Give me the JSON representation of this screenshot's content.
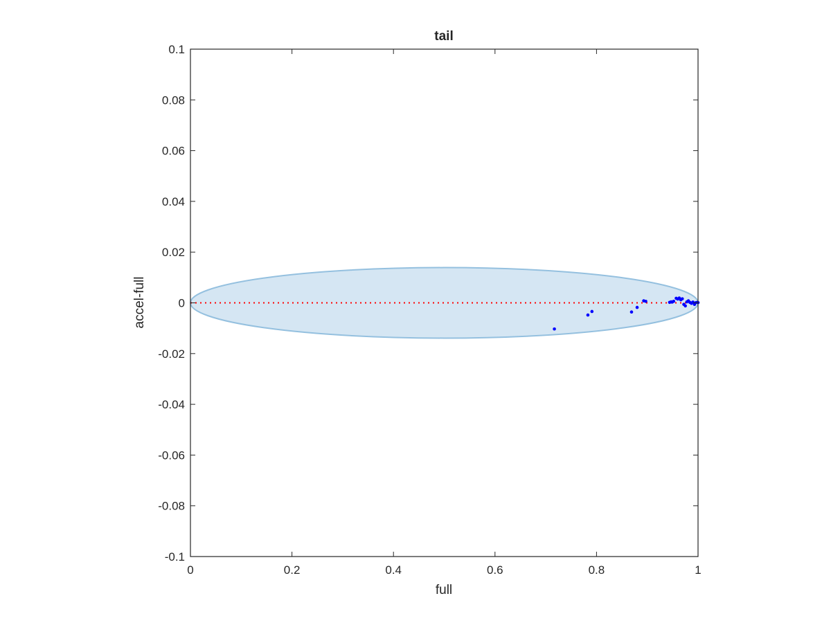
{
  "chart_data": {
    "type": "scatter",
    "title": "tail",
    "xlabel": "full",
    "ylabel": "accel-full",
    "xlim": [
      0,
      1
    ],
    "ylim": [
      -0.1,
      0.1
    ],
    "xticks": [
      "0",
      "0.2",
      "0.4",
      "0.6",
      "0.8",
      "1"
    ],
    "xtick_values": [
      0,
      0.2,
      0.4,
      0.6,
      0.8,
      1
    ],
    "yticks": [
      "0.1",
      "0.08",
      "0.06",
      "0.04",
      "0.02",
      "0",
      "-0.02",
      "-0.04",
      "-0.06",
      "-0.08",
      "-0.1"
    ],
    "ytick_values": [
      0.1,
      0.08,
      0.06,
      0.04,
      0.02,
      0,
      -0.02,
      -0.04,
      -0.06,
      -0.08,
      -0.1
    ],
    "grid": false,
    "box": true,
    "colors": {
      "points": "#0000ff",
      "reference_line": "#ff0000",
      "ellipse_fill": "#d5e6f3",
      "ellipse_edge": "#94c0df",
      "axis": "#262626"
    },
    "ellipse": {
      "center": [
        0.5,
        0.0
      ],
      "radii": [
        0.5,
        0.0139
      ]
    },
    "reference_line": {
      "y": 0,
      "style": "dotted"
    },
    "points": {
      "x": [
        0.717,
        0.783,
        0.791,
        0.869,
        0.88,
        0.893,
        0.897,
        0.944,
        0.947,
        0.949,
        0.952,
        0.957,
        0.96,
        0.963,
        0.966,
        0.969,
        0.972,
        0.975,
        0.978,
        0.981,
        0.984,
        0.987,
        0.99,
        0.993,
        0.996,
        0.999,
        1.0
      ],
      "y": [
        -0.0103,
        -0.0048,
        -0.0034,
        -0.0036,
        -0.0018,
        0.0008,
        0.0006,
        0.0002,
        0.0004,
        0.0003,
        0.0006,
        0.0018,
        0.0015,
        0.0019,
        0.0012,
        0.0016,
        -0.0006,
        -0.0012,
        0.0004,
        0.0008,
        0.0002,
        -0.0002,
        0.0003,
        -0.0006,
        0.0001,
        0.0002,
        0.0001
      ]
    }
  }
}
